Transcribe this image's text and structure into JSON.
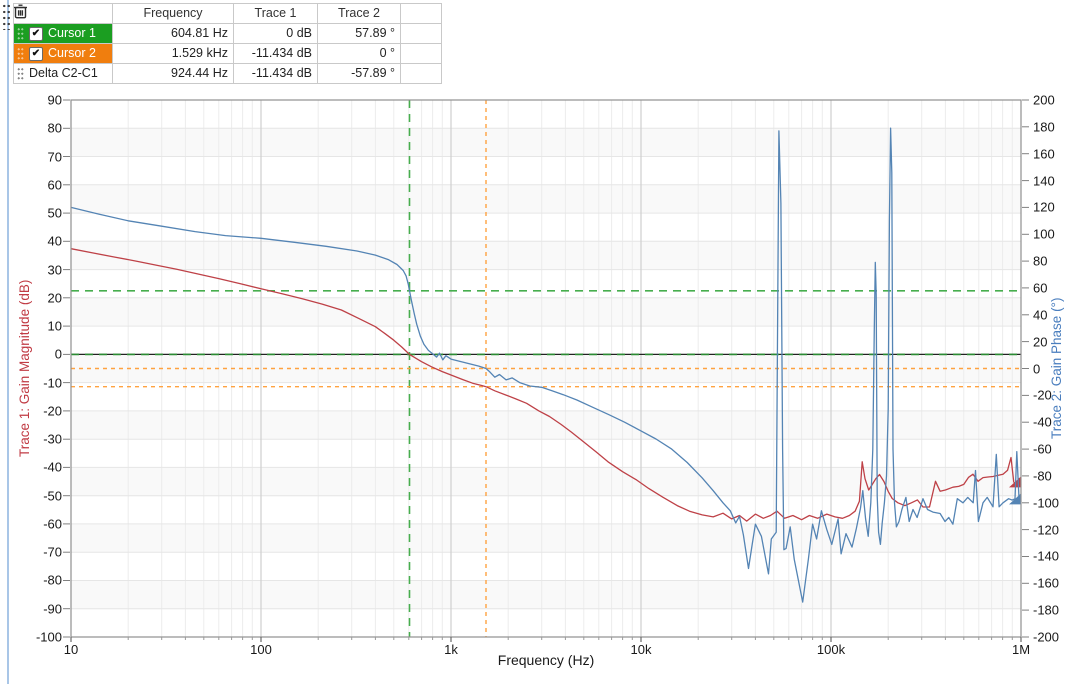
{
  "cursor_table": {
    "columns": [
      "",
      "Frequency",
      "Trace 1",
      "Trace 2",
      ""
    ],
    "rows": [
      {
        "name": "Cursor 1",
        "row_color": "#1B9E21",
        "checked": true,
        "frequency": "604.81 Hz",
        "trace1": "0 dB",
        "trace2": "57.89 °",
        "trash_enabled": false
      },
      {
        "name": "Cursor 2",
        "row_color": "#F07E0E",
        "checked": true,
        "frequency": "1.529 kHz",
        "trace1": "-11.434 dB",
        "trace2": "0 °",
        "trash_enabled": false
      },
      {
        "name": "Delta C2-C1",
        "row_color": null,
        "checked": null,
        "frequency": "924.44 Hz",
        "trace1": "-11.434 dB",
        "trace2": "-57.89 °",
        "trash_enabled": true
      }
    ],
    "check_glyph": "✔"
  },
  "chart_data": {
    "type": "line",
    "x_axis": {
      "label": "Frequency (Hz)",
      "scale": "log",
      "min": 10,
      "max": 1000000,
      "ticks": [
        {
          "f": 10,
          "label": "10"
        },
        {
          "f": 100,
          "label": "100"
        },
        {
          "f": 1000,
          "label": "1k"
        },
        {
          "f": 10000,
          "label": "10k"
        },
        {
          "f": 100000,
          "label": "100k"
        },
        {
          "f": 1000000,
          "label": "1M"
        }
      ]
    },
    "y_left": {
      "label": "Trace 1: Gain Magnitude (dB)",
      "min": -100,
      "max": 90,
      "color": "#C13B44",
      "ticks": [
        90,
        80,
        70,
        60,
        50,
        40,
        30,
        20,
        10,
        0,
        -10,
        -20,
        -30,
        -40,
        -50,
        -60,
        -70,
        -80,
        -90,
        -100
      ]
    },
    "y_right": {
      "label": "Trace 2: Gain Phase (°)",
      "min": -200,
      "max": 200,
      "color": "#4A7EBE",
      "ticks": [
        200,
        180,
        160,
        140,
        120,
        100,
        80,
        60,
        40,
        20,
        0,
        -20,
        -40,
        -60,
        -80,
        -100,
        -120,
        -140,
        -160,
        -180,
        -200
      ]
    },
    "cursors": [
      {
        "name": "Cursor 1",
        "color": "#47AE4E",
        "mag_line_color": "#2B8C33",
        "freq": 604.81,
        "mag": 0,
        "phase": 57.89,
        "dash": "8 6",
        "width": 1.6
      },
      {
        "name": "Cursor 2",
        "color": "#FFA240",
        "mag_line_color": "#FFA240",
        "freq": 1529,
        "mag": -11.434,
        "phase": 0,
        "dash": "4 4",
        "width": 1.4
      }
    ],
    "series": [
      {
        "name": "Trace 1: Gain Magnitude (dB)",
        "axis": "left",
        "color": "#BE4147",
        "end_value": -46,
        "points": [
          [
            10,
            37.4
          ],
          [
            13,
            35.9
          ],
          [
            17,
            34.4
          ],
          [
            22,
            33.0
          ],
          [
            28,
            31.6
          ],
          [
            36,
            30.1
          ],
          [
            46,
            28.5
          ],
          [
            60,
            26.8
          ],
          [
            78,
            25.0
          ],
          [
            100,
            23.2
          ],
          [
            130,
            21.4
          ],
          [
            165,
            19.7
          ],
          [
            210,
            17.8
          ],
          [
            265,
            15.7
          ],
          [
            330,
            12.6
          ],
          [
            400,
            9.8
          ],
          [
            450,
            7.3
          ],
          [
            500,
            5.0
          ],
          [
            550,
            2.6
          ],
          [
            604.81,
            0
          ],
          [
            700,
            -2.6
          ],
          [
            790,
            -4.4
          ],
          [
            900,
            -6.1
          ],
          [
            1000,
            -7.3
          ],
          [
            1150,
            -8.9
          ],
          [
            1300,
            -10.2
          ],
          [
            1450,
            -11.0
          ],
          [
            1529,
            -11.43
          ],
          [
            1700,
            -12.9
          ],
          [
            1950,
            -14.4
          ],
          [
            2200,
            -15.8
          ],
          [
            2500,
            -17.3
          ],
          [
            2900,
            -20.0
          ],
          [
            3300,
            -22
          ],
          [
            3800,
            -24.8
          ],
          [
            4300,
            -27.5
          ],
          [
            5000,
            -31
          ],
          [
            5800,
            -34.5
          ],
          [
            6700,
            -38
          ],
          [
            8000,
            -41.5
          ],
          [
            9500,
            -44.5
          ],
          [
            11000,
            -47.5
          ],
          [
            13000,
            -50.5
          ],
          [
            15500,
            -53.5
          ],
          [
            18000,
            -55.5
          ],
          [
            21000,
            -56.8
          ],
          [
            24000,
            -57.5
          ],
          [
            27000,
            -56.2
          ],
          [
            30000,
            -58.2
          ],
          [
            33000,
            -57
          ],
          [
            36000,
            -59
          ],
          [
            40000,
            -56.5
          ],
          [
            44000,
            -58
          ],
          [
            48000,
            -57
          ],
          [
            52000,
            -55.5
          ],
          [
            57000,
            -58
          ],
          [
            63000,
            -57
          ],
          [
            70000,
            -58.5
          ],
          [
            77000,
            -57
          ],
          [
            85000,
            -58
          ],
          [
            95000,
            -56.5
          ],
          [
            105000,
            -57.5
          ],
          [
            115000,
            -58
          ],
          [
            125000,
            -57
          ],
          [
            134000,
            -55.5
          ],
          [
            141000,
            -52
          ],
          [
            146000,
            -38
          ],
          [
            151000,
            -44
          ],
          [
            158000,
            -48
          ],
          [
            165000,
            -46
          ],
          [
            172000,
            -44
          ],
          [
            180000,
            -42.5
          ],
          [
            190000,
            -45
          ],
          [
            200000,
            -48.5
          ],
          [
            210000,
            -51
          ],
          [
            225000,
            -52.5
          ],
          [
            245000,
            -53.5
          ],
          [
            265000,
            -52.5
          ],
          [
            285000,
            -51.5
          ],
          [
            305000,
            -54
          ],
          [
            330000,
            -54
          ],
          [
            355000,
            -44.9
          ],
          [
            375000,
            -48.4
          ],
          [
            400000,
            -48
          ],
          [
            438000,
            -47
          ],
          [
            470000,
            -46.7
          ],
          [
            500000,
            -46
          ],
          [
            530000,
            -43.5
          ],
          [
            559000,
            -42.4
          ],
          [
            594000,
            -44.9
          ],
          [
            631000,
            -43.6
          ],
          [
            670000,
            -43.4
          ],
          [
            712000,
            -43.2
          ],
          [
            760000,
            -42.8
          ],
          [
            804000,
            -42.4
          ],
          [
            850000,
            -41
          ],
          [
            886000,
            -36.5
          ],
          [
            915000,
            -45
          ],
          [
            940000,
            -46.6
          ],
          [
            970000,
            -44
          ],
          [
            1000000,
            -46
          ]
        ]
      },
      {
        "name": "Trace 2: Gain Phase (°)",
        "axis": "right",
        "color": "#5484B4",
        "end_value": -99,
        "points": [
          [
            10,
            120
          ],
          [
            14,
            115
          ],
          [
            20,
            110
          ],
          [
            30,
            106
          ],
          [
            45,
            102
          ],
          [
            65,
            99
          ],
          [
            100,
            97
          ],
          [
            150,
            94
          ],
          [
            220,
            91
          ],
          [
            320,
            87.5
          ],
          [
            400,
            84.5
          ],
          [
            470,
            81
          ],
          [
            520,
            77.5
          ],
          [
            560,
            73
          ],
          [
            580,
            69
          ],
          [
            595,
            63
          ],
          [
            604.81,
            57.89
          ],
          [
            620,
            50
          ],
          [
            640,
            41
          ],
          [
            660,
            33
          ],
          [
            690,
            24
          ],
          [
            720,
            18
          ],
          [
            760,
            13.5
          ],
          [
            800,
            11
          ],
          [
            840,
            8.5
          ],
          [
            870,
            11.5
          ],
          [
            905,
            6.5
          ],
          [
            940,
            9.5
          ],
          [
            1000,
            7
          ],
          [
            1100,
            5.5
          ],
          [
            1250,
            3.5
          ],
          [
            1400,
            1.8
          ],
          [
            1529,
            0
          ],
          [
            1600,
            -2.5
          ],
          [
            1700,
            -6.5
          ],
          [
            1800,
            -4.5
          ],
          [
            1950,
            -8.5
          ],
          [
            2100,
            -7
          ],
          [
            2300,
            -10.5
          ],
          [
            2600,
            -13
          ],
          [
            3000,
            -14
          ],
          [
            3400,
            -16.5
          ],
          [
            3900,
            -19.5
          ],
          [
            4600,
            -23.5
          ],
          [
            5500,
            -28.5
          ],
          [
            6800,
            -34.5
          ],
          [
            8200,
            -40
          ],
          [
            10000,
            -46.5
          ],
          [
            12000,
            -52.5
          ],
          [
            14500,
            -60
          ],
          [
            17500,
            -70
          ],
          [
            21000,
            -81.5
          ],
          [
            24000,
            -91
          ],
          [
            27000,
            -100
          ],
          [
            29500,
            -106
          ],
          [
            31500,
            -115
          ],
          [
            33000,
            -110
          ],
          [
            34600,
            -124
          ],
          [
            36800,
            -149
          ],
          [
            38500,
            -131
          ],
          [
            40000,
            -116
          ],
          [
            43000,
            -125
          ],
          [
            46900,
            -153
          ],
          [
            48500,
            -127
          ],
          [
            51500,
            -122
          ],
          [
            53200,
            177
          ],
          [
            54500,
            123
          ],
          [
            55600,
            -60
          ],
          [
            56500,
            -135
          ],
          [
            58000,
            -134
          ],
          [
            61000,
            -118
          ],
          [
            64000,
            -142
          ],
          [
            71000,
            -174
          ],
          [
            76000,
            -142
          ],
          [
            80000,
            -116
          ],
          [
            84000,
            -127
          ],
          [
            89000,
            -106
          ],
          [
            95000,
            -120
          ],
          [
            101000,
            -131
          ],
          [
            109000,
            -112
          ],
          [
            113000,
            -138
          ],
          [
            120000,
            -123
          ],
          [
            129000,
            -133
          ],
          [
            136000,
            -119
          ],
          [
            143000,
            -104
          ],
          [
            147000,
            -91
          ],
          [
            152000,
            -112
          ],
          [
            157000,
            -125
          ],
          [
            162000,
            -100
          ],
          [
            166000,
            -60
          ],
          [
            169000,
            30
          ],
          [
            171000,
            79
          ],
          [
            173000,
            55
          ],
          [
            175000,
            -95
          ],
          [
            178000,
            -122
          ],
          [
            182000,
            -131
          ],
          [
            186000,
            -115
          ],
          [
            191000,
            -100
          ],
          [
            196000,
            -80
          ],
          [
            200000,
            -30
          ],
          [
            203000,
            110
          ],
          [
            206000,
            179
          ],
          [
            209000,
            146
          ],
          [
            212000,
            -60
          ],
          [
            216000,
            -100
          ],
          [
            221000,
            -118
          ],
          [
            228000,
            -114
          ],
          [
            236000,
            -105
          ],
          [
            248000,
            -96
          ],
          [
            258000,
            -114
          ],
          [
            270000,
            -105
          ],
          [
            284000,
            -111
          ],
          [
            305000,
            -97
          ],
          [
            322000,
            -105
          ],
          [
            344000,
            -107
          ],
          [
            375000,
            -108
          ],
          [
            398000,
            -114
          ],
          [
            417000,
            -111
          ],
          [
            438000,
            -116
          ],
          [
            462000,
            -97
          ],
          [
            495000,
            -100
          ],
          [
            524000,
            -96
          ],
          [
            560000,
            -100
          ],
          [
            576000,
            -76
          ],
          [
            597000,
            -114
          ],
          [
            631000,
            -100
          ],
          [
            664000,
            -96
          ],
          [
            712000,
            -103
          ],
          [
            741000,
            -64
          ],
          [
            767000,
            -103
          ],
          [
            804000,
            -100
          ],
          [
            860000,
            -97
          ],
          [
            900000,
            -98
          ],
          [
            930000,
            -97
          ],
          [
            950000,
            -62
          ],
          [
            975000,
            -95
          ],
          [
            1000000,
            -99
          ]
        ]
      }
    ],
    "grid": true,
    "legend_position": "none"
  }
}
